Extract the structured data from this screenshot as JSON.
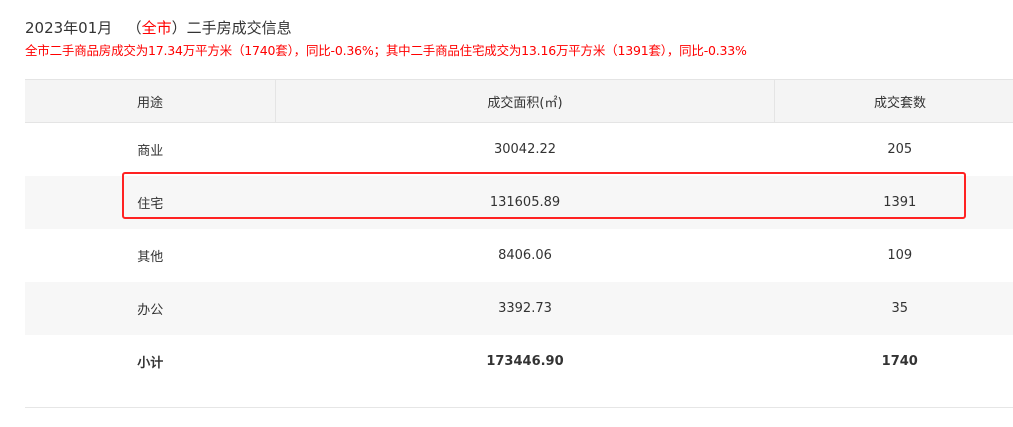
{
  "header": {
    "period": "2023年01月",
    "paren_open": "（",
    "city": "全市",
    "paren_close": "）",
    "title_suffix": "二手房成交信息"
  },
  "summary": "全市二手商品房成交为17.34万平方米（1740套），同比-0.36%；其中二手商品住宅成交为13.16万平方米（1391套），同比-0.33%",
  "table": {
    "columns": [
      "用途",
      "成交面积(㎡)",
      "成交套数"
    ],
    "rows": [
      [
        "商业",
        "30042.22",
        "205"
      ],
      [
        "住宅",
        "131605.89",
        "1391"
      ],
      [
        "其他",
        "8406.06",
        "109"
      ],
      [
        "办公",
        "3392.73",
        "35"
      ],
      [
        "小计",
        "173446.90",
        "1740"
      ]
    ],
    "highlighted_row": "住宅"
  },
  "colors": {
    "accent": "#ff0000",
    "highlight_border": "#ff2222"
  }
}
